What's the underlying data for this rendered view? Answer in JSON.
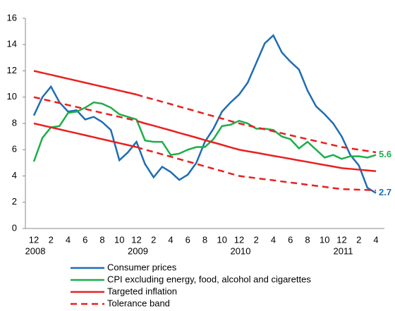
{
  "chart_data": {
    "type": "line",
    "categories": [
      "12",
      null,
      "2",
      null,
      "4",
      null,
      "6",
      null,
      "8",
      null,
      "10",
      null,
      "12",
      null,
      "2",
      null,
      "4",
      null,
      "6",
      null,
      "8",
      null,
      "10",
      null,
      "12",
      null,
      "2",
      null,
      "4",
      null,
      "6",
      null,
      "8",
      null,
      "10",
      null,
      "12",
      null,
      "2",
      null,
      "4"
    ],
    "year_labels": [
      "2008",
      "2009",
      "2010",
      "2011"
    ],
    "ylim": [
      0,
      16
    ],
    "yticks": [
      0,
      2,
      4,
      6,
      8,
      10,
      12,
      14,
      16
    ],
    "series": [
      {
        "name": "Consumer prices",
        "color": "#1f6db3",
        "style": "solid",
        "values": [
          8.6,
          10.0,
          10.8,
          9.6,
          8.9,
          9.0,
          8.3,
          8.5,
          8.1,
          7.5,
          5.2,
          5.8,
          6.6,
          4.9,
          3.9,
          4.7,
          4.3,
          3.7,
          4.1,
          5.0,
          6.6,
          7.6,
          8.9,
          9.6,
          10.2,
          11.1,
          12.6,
          14.1,
          14.7,
          13.4,
          12.7,
          12.1,
          10.5,
          9.3,
          8.7,
          8.0,
          7.0,
          5.6,
          4.8,
          3.1,
          2.7
        ],
        "value_labels": [
          null,
          null,
          null,
          null,
          null,
          null,
          null,
          null,
          null,
          null,
          null,
          null,
          null,
          null,
          null,
          null,
          null,
          null,
          null,
          null,
          null,
          null,
          null,
          null,
          null,
          null,
          null,
          null,
          null,
          null,
          null,
          null,
          null,
          null,
          null,
          null,
          null,
          null,
          null,
          null,
          "2.7"
        ]
      },
      {
        "name": "CPI excluding energy, food, alcohol and cigarettes",
        "color": "#1cae4a",
        "style": "solid",
        "values": [
          5.1,
          6.9,
          7.7,
          7.8,
          8.8,
          8.9,
          9.2,
          9.6,
          9.5,
          9.2,
          8.7,
          8.5,
          8.3,
          6.7,
          6.6,
          6.6,
          5.6,
          5.7,
          6.0,
          6.2,
          6.2,
          6.8,
          7.8,
          7.9,
          8.2,
          8.0,
          7.6,
          7.6,
          7.5,
          7.0,
          6.8,
          6.1,
          6.6,
          6.0,
          5.4,
          5.6,
          5.3,
          5.5,
          5.5,
          5.4,
          5.6
        ],
        "value_labels": [
          null,
          null,
          null,
          null,
          null,
          null,
          null,
          null,
          null,
          null,
          null,
          null,
          null,
          null,
          null,
          null,
          null,
          null,
          null,
          null,
          null,
          null,
          null,
          null,
          null,
          null,
          null,
          null,
          null,
          null,
          null,
          null,
          null,
          null,
          null,
          null,
          null,
          null,
          null,
          null,
          "5.6"
        ]
      },
      {
        "name": "Targeted inflation",
        "color": "#e8211f",
        "style": "solid",
        "values": [
          12.0,
          11.85,
          11.7,
          11.55,
          11.4,
          11.25,
          11.1,
          10.95,
          10.8,
          10.65,
          10.5,
          10.35,
          10.2,
          null,
          null,
          null,
          null,
          null,
          null,
          null,
          null,
          null,
          null,
          null,
          null,
          null,
          null,
          null,
          null,
          null,
          null,
          null,
          null,
          null,
          null,
          null,
          null,
          null,
          null,
          null,
          null
        ]
      },
      {
        "color": "#e8211f",
        "style": "solid",
        "values": [
          null,
          null,
          null,
          null,
          null,
          null,
          null,
          null,
          null,
          null,
          null,
          null,
          8.2,
          8.0,
          7.83,
          7.65,
          7.47,
          7.28,
          7.1,
          6.92,
          6.73,
          6.55,
          6.37,
          6.18,
          6.0,
          5.88,
          5.77,
          5.65,
          5.53,
          5.42,
          5.3,
          5.18,
          5.07,
          4.95,
          4.83,
          4.72,
          4.6,
          4.54,
          4.48,
          4.42,
          4.36
        ]
      },
      {
        "color": "#e8211f",
        "style": "solid",
        "values": [
          8.0,
          7.85,
          7.7,
          7.55,
          7.4,
          7.25,
          7.1,
          6.95,
          6.8,
          6.65,
          6.5,
          6.35,
          6.2,
          null,
          null,
          null,
          null,
          null,
          null,
          null,
          null,
          null,
          null,
          null,
          null,
          null,
          null,
          null,
          null,
          null,
          null,
          null,
          null,
          null,
          null,
          null,
          null,
          null,
          null,
          null,
          null
        ]
      },
      {
        "name": "Tolerance band",
        "color": "#e8211f",
        "style": "dashed",
        "values": [
          10.0,
          9.85,
          9.7,
          9.55,
          9.4,
          9.25,
          9.1,
          8.95,
          8.8,
          8.65,
          8.5,
          8.35,
          8.2,
          null,
          null,
          null,
          null,
          null,
          null,
          null,
          null,
          null,
          null,
          null,
          null,
          null,
          null,
          null,
          null,
          null,
          null,
          null,
          null,
          null,
          null,
          null,
          null,
          null,
          null,
          null,
          null
        ]
      },
      {
        "color": "#e8211f",
        "style": "dashed",
        "values": [
          null,
          null,
          null,
          null,
          null,
          null,
          null,
          null,
          null,
          null,
          null,
          null,
          10.2,
          10.0,
          9.83,
          9.65,
          9.47,
          9.28,
          9.1,
          8.92,
          8.73,
          8.55,
          8.37,
          8.18,
          8.0,
          7.85,
          7.7,
          7.55,
          7.4,
          7.25,
          7.1,
          6.95,
          6.8,
          6.65,
          6.5,
          6.35,
          6.2,
          6.1,
          6.0,
          5.9,
          5.8
        ]
      },
      {
        "color": "#e8211f",
        "style": "dashed",
        "values": [
          null,
          null,
          null,
          null,
          null,
          null,
          null,
          null,
          null,
          null,
          null,
          null,
          6.2,
          6.0,
          5.83,
          5.65,
          5.47,
          5.28,
          5.1,
          4.92,
          4.73,
          4.55,
          4.37,
          4.18,
          4.0,
          3.92,
          3.83,
          3.75,
          3.67,
          3.58,
          3.5,
          3.42,
          3.33,
          3.25,
          3.17,
          3.08,
          3.0,
          2.98,
          2.95,
          2.93,
          2.9
        ]
      }
    ]
  }
}
